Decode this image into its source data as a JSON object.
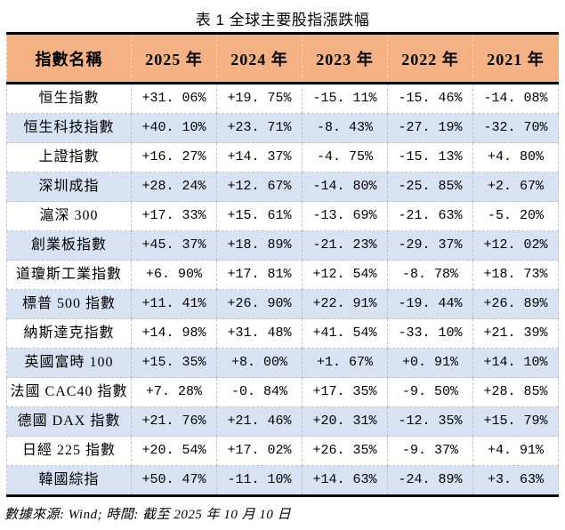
{
  "title": "表 1 全球主要股指漲跌幅",
  "source_note": "數據來源: Wind; 時間: 截至 2025 年 10 月 10 日",
  "colors": {
    "header_bg": "#F4B183",
    "alt_row_bg": "#D9E2F3",
    "grid_line": "#C0C4CC",
    "heavy_border": "#000000",
    "text": "#000000",
    "background": "#FFFFFF"
  },
  "table": {
    "columns": [
      "指數名稱",
      "2025 年",
      "2024 年",
      "2023 年",
      "2022 年",
      "2021 年"
    ],
    "rows": [
      {
        "label": "恒生指數",
        "values": [
          "+31.06%",
          "+19.75%",
          "-15.11%",
          "-15.46%",
          "-14.08%"
        ]
      },
      {
        "label": "恒生科技指數",
        "values": [
          "+40.10%",
          "+23.71%",
          "-8.43%",
          "-27.19%",
          "-32.70%"
        ]
      },
      {
        "label": "上證指數",
        "values": [
          "+16.27%",
          "+14.37%",
          "-4.75%",
          "-15.13%",
          "+4.80%"
        ]
      },
      {
        "label": "深圳成指",
        "values": [
          "+28.24%",
          "+12.67%",
          "-14.80%",
          "-25.85%",
          "+2.67%"
        ]
      },
      {
        "label": "滬深 300",
        "values": [
          "+17.33%",
          "+15.61%",
          "-13.69%",
          "-21.63%",
          "-5.20%"
        ]
      },
      {
        "label": "創業板指數",
        "values": [
          "+45.37%",
          "+18.89%",
          "-21.23%",
          "-29.37%",
          "+12.02%"
        ]
      },
      {
        "label": "道瓊斯工業指數",
        "values": [
          "+6.90%",
          "+17.81%",
          "+12.54%",
          "-8.78%",
          "+18.73%"
        ]
      },
      {
        "label": "標普 500 指數",
        "values": [
          "+11.41%",
          "+26.90%",
          "+22.91%",
          "-19.44%",
          "+26.89%"
        ]
      },
      {
        "label": "納斯達克指數",
        "values": [
          "+14.98%",
          "+31.48%",
          "+41.54%",
          "-33.10%",
          "+21.39%"
        ]
      },
      {
        "label": "英國富時 100",
        "values": [
          "+15.35%",
          "+8.00%",
          "+1.67%",
          "+0.91%",
          "+14.10%"
        ]
      },
      {
        "label": "法國 CAC40 指數",
        "values": [
          "+7.28%",
          "-0.84%",
          "+17.35%",
          "-9.50%",
          "+28.85%"
        ]
      },
      {
        "label": "德國 DAX 指數",
        "values": [
          "+21.76%",
          "+21.46%",
          "+20.31%",
          "-12.35%",
          "+15.79%"
        ]
      },
      {
        "label": "日經 225 指數",
        "values": [
          "+20.54%",
          "+17.02%",
          "+26.35%",
          "-9.37%",
          "+4.91%"
        ]
      },
      {
        "label": "韓國綜指",
        "values": [
          "+50.47%",
          "-11.10%",
          "+14.63%",
          "-24.89%",
          "+3.63%"
        ]
      }
    ]
  },
  "chart_data": {
    "type": "table",
    "title": "表 1 全球主要股指漲跌幅",
    "unit": "percent_change",
    "categories": [
      "2025",
      "2024",
      "2023",
      "2022",
      "2021"
    ],
    "series": [
      {
        "name": "恒生指數",
        "values": [
          31.06,
          19.75,
          -15.11,
          -15.46,
          -14.08
        ]
      },
      {
        "name": "恒生科技指數",
        "values": [
          40.1,
          23.71,
          -8.43,
          -27.19,
          -32.7
        ]
      },
      {
        "name": "上證指數",
        "values": [
          16.27,
          14.37,
          -4.75,
          -15.13,
          4.8
        ]
      },
      {
        "name": "深圳成指",
        "values": [
          28.24,
          12.67,
          -14.8,
          -25.85,
          2.67
        ]
      },
      {
        "name": "滬深 300",
        "values": [
          17.33,
          15.61,
          -13.69,
          -21.63,
          -5.2
        ]
      },
      {
        "name": "創業板指數",
        "values": [
          45.37,
          18.89,
          -21.23,
          -29.37,
          12.02
        ]
      },
      {
        "name": "道瓊斯工業指數",
        "values": [
          6.9,
          17.81,
          12.54,
          -8.78,
          18.73
        ]
      },
      {
        "name": "標普 500 指數",
        "values": [
          11.41,
          26.9,
          22.91,
          -19.44,
          26.89
        ]
      },
      {
        "name": "納斯達克指數",
        "values": [
          14.98,
          31.48,
          41.54,
          -33.1,
          21.39
        ]
      },
      {
        "name": "英國富時 100",
        "values": [
          15.35,
          8.0,
          1.67,
          0.91,
          14.1
        ]
      },
      {
        "name": "法國 CAC40 指數",
        "values": [
          7.28,
          -0.84,
          17.35,
          -9.5,
          28.85
        ]
      },
      {
        "name": "德國 DAX 指數",
        "values": [
          21.76,
          21.46,
          20.31,
          -12.35,
          15.79
        ]
      },
      {
        "name": "日經 225 指數",
        "values": [
          20.54,
          17.02,
          26.35,
          -9.37,
          4.91
        ]
      },
      {
        "name": "韓國綜指",
        "values": [
          50.47,
          -11.1,
          14.63,
          -24.89,
          3.63
        ]
      }
    ],
    "source_note": "數據來源: Wind; 時間: 截至 2025 年 10 月 10 日"
  }
}
